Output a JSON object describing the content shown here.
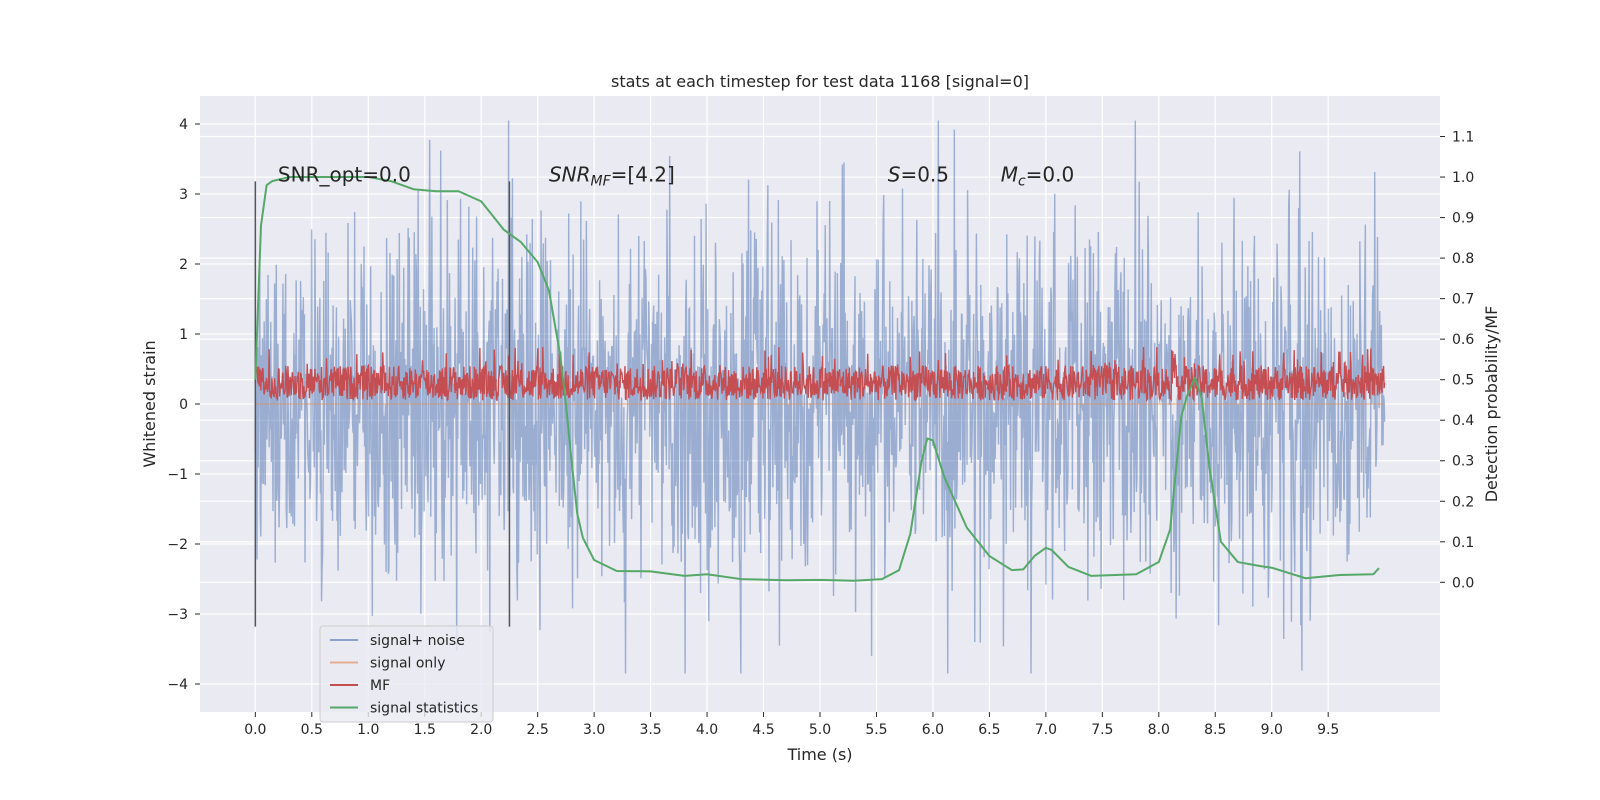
{
  "chart_data": {
    "type": "line",
    "title": "stats at each timestep for test data 1168 [signal=0]",
    "xlabel": "Time (s)",
    "ylabel": "Whitened strain",
    "ylabel_right": "Detection probability/MF",
    "xlim": [
      -0.49,
      10.49
    ],
    "ylim": [
      -4.4,
      4.4
    ],
    "ylim_right": [
      -0.32,
      1.2
    ],
    "x_ticks": [
      0.0,
      0.5,
      1.0,
      1.5,
      2.0,
      2.5,
      3.0,
      3.5,
      4.0,
      4.5,
      5.0,
      5.5,
      6.0,
      6.5,
      7.0,
      7.5,
      8.0,
      8.5,
      9.0,
      9.5
    ],
    "x_tick_labels": [
      "0.0",
      "0.5",
      "1.0",
      "1.5",
      "2.0",
      "2.5",
      "3.0",
      "3.5",
      "4.0",
      "4.5",
      "5.0",
      "5.5",
      "6.0",
      "6.5",
      "7.0",
      "7.5",
      "8.0",
      "8.5",
      "9.0",
      "9.5"
    ],
    "y_ticks": [
      4,
      3,
      2,
      1,
      0,
      -1,
      -2,
      -3,
      -4
    ],
    "y_tick_labels": [
      "4",
      "3",
      "2",
      "1",
      "0",
      "−1",
      "−2",
      "−3",
      "−4"
    ],
    "y_right_ticks": [
      1.1,
      1.0,
      0.9,
      0.8,
      0.7,
      0.6,
      0.5,
      0.4,
      0.3,
      0.2,
      0.1,
      0.0
    ],
    "y_right_tick_labels": [
      "1.1",
      "1.0",
      "0.9",
      "0.8",
      "0.7",
      "0.6",
      "0.5",
      "0.4",
      "0.3",
      "0.2",
      "0.1",
      "0.0"
    ],
    "grid": true,
    "legend_position": "lower-left",
    "annotations": [
      {
        "text": "SNR_opt=0.0",
        "x": 0.2,
        "y": 3.18
      },
      {
        "text": "SNR_MF=[4.2]",
        "x": 2.6,
        "y": 3.18
      },
      {
        "text": "S=0.5",
        "x": 5.6,
        "y": 3.18
      },
      {
        "text": "M_c=0.0",
        "x": 6.6,
        "y": 3.18
      }
    ],
    "vlines": [
      {
        "x": 0.0,
        "ymin": -3.18,
        "ymax": 3.18
      },
      {
        "x": 2.25,
        "ymin": -3.18,
        "ymax": 3.18
      }
    ],
    "series": [
      {
        "name": "signal+ noise",
        "color": "#4c72b0",
        "alpha": 0.5,
        "x_start": 0.0,
        "x_end": 10.0,
        "n_points": 2048,
        "typical_range": [
          -1.3,
          1.3
        ],
        "max": 4.05,
        "min": -3.85
      },
      {
        "name": "signal only",
        "color": "#dd8452",
        "alpha": 0.5,
        "x": [
          0.0,
          10.0
        ],
        "y": [
          0.0,
          0.0
        ]
      },
      {
        "name": "MF",
        "color": "#c44e52",
        "x_start": 0.0,
        "x_end": 10.0,
        "n_points": 2048,
        "typical_range": [
          0.05,
          0.55
        ],
        "max": 0.82,
        "min": 0.0
      },
      {
        "name": "signal statistics",
        "color": "#55a868",
        "axis": "right",
        "x": [
          0.0,
          0.05,
          0.1,
          0.15,
          0.3,
          0.5,
          1.0,
          1.2,
          1.4,
          1.6,
          1.8,
          2.0,
          2.1,
          2.2,
          2.35,
          2.5,
          2.6,
          2.7,
          2.75,
          2.8,
          2.85,
          2.9,
          3.0,
          3.2,
          3.5,
          3.8,
          4.0,
          4.3,
          4.7,
          5.0,
          5.3,
          5.55,
          5.7,
          5.8,
          5.9,
          5.95,
          6.0,
          6.1,
          6.3,
          6.5,
          6.7,
          6.8,
          6.9,
          7.0,
          7.05,
          7.2,
          7.4,
          7.8,
          8.0,
          8.1,
          8.2,
          8.25,
          8.32,
          8.38,
          8.45,
          8.55,
          8.7,
          8.9,
          9.0,
          9.3,
          9.6,
          9.9,
          9.95
        ],
        "y": [
          0.5,
          0.88,
          0.98,
          0.99,
          1.0,
          1.0,
          1.0,
          0.99,
          0.97,
          0.965,
          0.965,
          0.94,
          0.905,
          0.87,
          0.84,
          0.79,
          0.72,
          0.56,
          0.44,
          0.3,
          0.17,
          0.11,
          0.055,
          0.028,
          0.027,
          0.016,
          0.02,
          0.008,
          0.005,
          0.006,
          0.004,
          0.008,
          0.03,
          0.12,
          0.3,
          0.355,
          0.35,
          0.26,
          0.135,
          0.065,
          0.03,
          0.032,
          0.065,
          0.085,
          0.08,
          0.038,
          0.016,
          0.02,
          0.05,
          0.13,
          0.41,
          0.46,
          0.505,
          0.455,
          0.28,
          0.1,
          0.05,
          0.04,
          0.036,
          0.01,
          0.018,
          0.02,
          0.035
        ]
      }
    ]
  }
}
